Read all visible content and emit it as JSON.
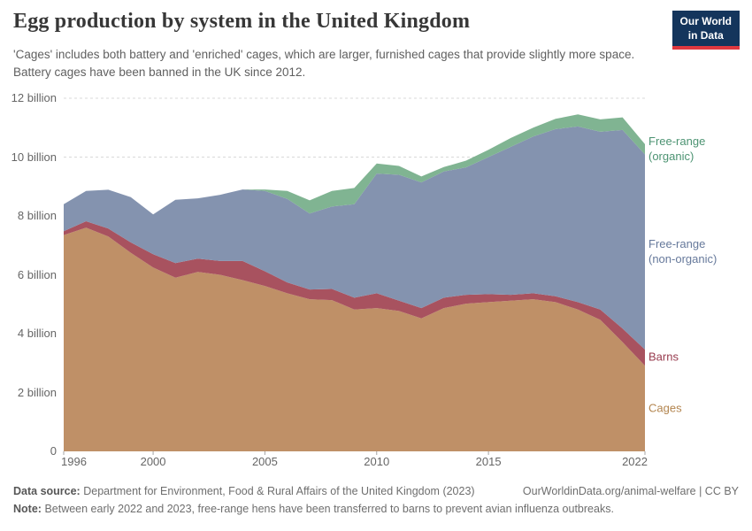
{
  "header": {
    "title": "Egg production by system in the United Kingdom",
    "subtitle": "'Cages' includes both battery and 'enriched' cages, which are larger, furnished cages that provide slightly more space. Battery cages have been banned in the UK since 2012.",
    "logo": {
      "line1": "Our World",
      "line2": "in Data",
      "bg_color": "#14355C",
      "bar_color": "#E0383F"
    }
  },
  "chart_data": {
    "type": "area",
    "stacked": true,
    "title": "Egg production by system in the United Kingdom",
    "unit": "billion eggs",
    "grid": "dashed",
    "grid_color": "#d9d9d9",
    "tick_color": "#a3a3a3",
    "ylim": [
      0,
      12
    ],
    "x": [
      1996,
      1997,
      1998,
      1999,
      2000,
      2001,
      2002,
      2003,
      2004,
      2005,
      2006,
      2007,
      2008,
      2009,
      2010,
      2011,
      2012,
      2013,
      2014,
      2015,
      2016,
      2017,
      2018,
      2019,
      2020,
      2021,
      2022
    ],
    "x_ticks": [
      1996,
      2000,
      2005,
      2010,
      2015,
      2022
    ],
    "y_ticks": [
      {
        "value": 0,
        "label": "0"
      },
      {
        "value": 2,
        "label": "2 billion"
      },
      {
        "value": 4,
        "label": "4 billion"
      },
      {
        "value": 6,
        "label": "6 billion"
      },
      {
        "value": 8,
        "label": "8 billion"
      },
      {
        "value": 10,
        "label": "10 billion"
      },
      {
        "value": 12,
        "label": "12 billion"
      }
    ],
    "series": [
      {
        "id": "cages",
        "label": "Cages",
        "color": "#BF9067",
        "label_color": "#B3854F",
        "values": [
          7.35,
          7.6,
          7.3,
          6.75,
          6.25,
          5.9,
          6.1,
          6.0,
          5.82,
          5.62,
          5.37,
          5.17,
          5.14,
          4.82,
          4.87,
          4.77,
          4.52,
          4.87,
          5.02,
          5.07,
          5.12,
          5.17,
          5.07,
          4.82,
          4.47,
          3.71,
          2.91
        ]
      },
      {
        "id": "barns",
        "label": "Barns",
        "color": "#A8525F",
        "label_color": "#973A4D",
        "values": [
          0.13,
          0.22,
          0.27,
          0.35,
          0.45,
          0.5,
          0.45,
          0.47,
          0.65,
          0.5,
          0.37,
          0.33,
          0.38,
          0.4,
          0.5,
          0.35,
          0.35,
          0.35,
          0.3,
          0.27,
          0.2,
          0.2,
          0.2,
          0.25,
          0.35,
          0.46,
          0.55
        ]
      },
      {
        "id": "free-range-non-organic",
        "label": "Free-range\n(non-organic)",
        "color": "#8493AF",
        "label_color": "#66799B",
        "values": [
          0.92,
          1.03,
          1.32,
          1.54,
          1.35,
          2.15,
          2.05,
          2.25,
          2.43,
          2.73,
          2.84,
          2.58,
          2.8,
          3.18,
          4.07,
          4.28,
          4.27,
          4.29,
          4.33,
          4.66,
          5.03,
          5.33,
          5.68,
          5.97,
          6.04,
          6.75,
          6.63
        ]
      },
      {
        "id": "free-range-organic",
        "label": "Free-range\n(organic)",
        "color": "#80B492",
        "label_color": "#4C9372",
        "values": [
          0,
          0,
          0,
          0,
          0,
          0,
          0,
          0,
          0,
          0.05,
          0.27,
          0.45,
          0.53,
          0.55,
          0.34,
          0.3,
          0.2,
          0.15,
          0.23,
          0.25,
          0.3,
          0.3,
          0.35,
          0.41,
          0.42,
          0.43,
          0.35
        ]
      }
    ]
  },
  "footer": {
    "source_label": "Data source:",
    "source_text": "Department for Environment, Food & Rural Affairs of the United Kingdom (2023)",
    "attribution": "OurWorldinData.org/animal-welfare | CC BY",
    "note_label": "Note:",
    "note_text": "Between early 2022 and 2023, free-range hens have been transferred to barns to prevent avian influenza outbreaks."
  }
}
